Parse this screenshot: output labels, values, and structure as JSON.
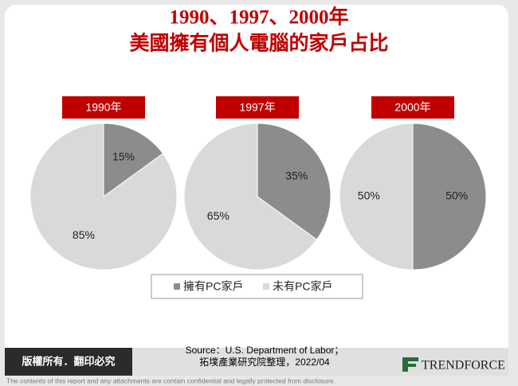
{
  "header": {
    "title_line1": "1990、1997、2000年",
    "title_line2": "美國擁有個人電腦的家戶占比"
  },
  "chart_data": [
    {
      "type": "pie",
      "title": "1990年",
      "categories": [
        "擁有PC家戶",
        "未有PC家戶"
      ],
      "values": [
        15,
        85
      ],
      "value_labels": [
        "15%",
        "85%"
      ],
      "colors": [
        "#8c8c8c",
        "#d9d9d9"
      ]
    },
    {
      "type": "pie",
      "title": "1997年",
      "categories": [
        "擁有PC家戶",
        "未有PC家戶"
      ],
      "values": [
        35,
        65
      ],
      "value_labels": [
        "35%",
        "65%"
      ],
      "colors": [
        "#8c8c8c",
        "#d9d9d9"
      ]
    },
    {
      "type": "pie",
      "title": "2000年",
      "categories": [
        "擁有PC家戶",
        "未有PC家戶"
      ],
      "values": [
        50,
        50
      ],
      "value_labels": [
        "50%",
        "50%"
      ],
      "colors": [
        "#8c8c8c",
        "#d9d9d9"
      ]
    }
  ],
  "footer": {
    "rights": "版權所有．翻印必究",
    "source_line1": "Source：U.S. Department of Labor；",
    "source_line2": "拓墣產業研究院整理，2022/04",
    "logo": "TRENDFORCE",
    "disclaimer": "The contents of this report and any attachments are contain confidential and legally protected from disclosure."
  }
}
